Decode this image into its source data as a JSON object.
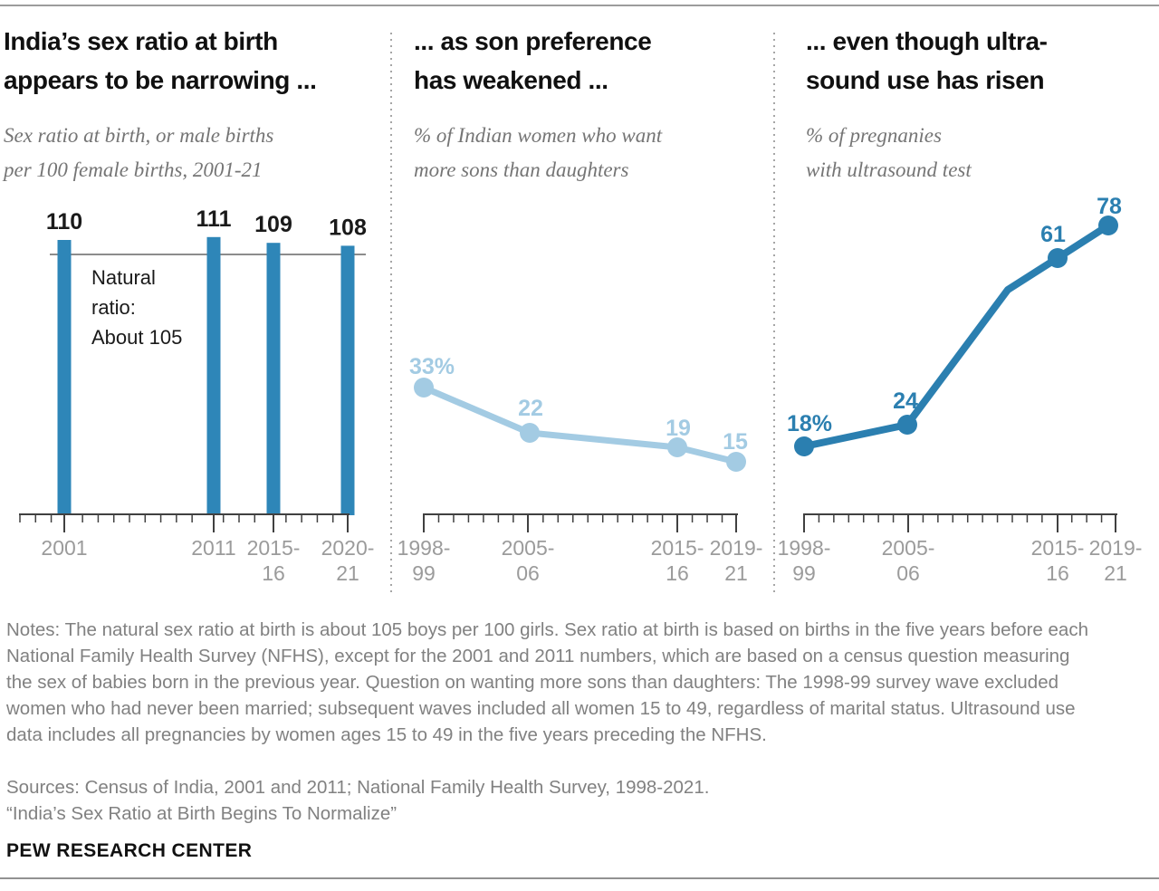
{
  "panels": [
    {
      "title": "India’s sex ratio at birth\nappears to be narrowing ...",
      "subtitle": "Sex ratio at birth, or male births\nper 100 female births, 2001-21"
    },
    {
      "title": "... as son preference\nhas weakened ...",
      "subtitle": "% of Indian women who want\nmore sons than daughters"
    },
    {
      "title": "... even though ultra-\nsound use has risen",
      "subtitle": "% of pregnanies\nwith ultrasound test"
    }
  ],
  "chart_data": [
    {
      "type": "bar",
      "categories": [
        "2001",
        "2011",
        "2015-\n16",
        "2020-\n21"
      ],
      "values": [
        110,
        111,
        109,
        108
      ],
      "value_labels": [
        "110",
        "111",
        "109",
        "108"
      ],
      "ylabel": "Sex ratio at birth (male births per 100 female births)",
      "reference_line": {
        "value": 105,
        "label": "Natural\nratio:\nAbout 105"
      },
      "x_axis_span": "2000-2021, minor ticks each year",
      "grid": "off"
    },
    {
      "type": "line",
      "categories": [
        "1998-\n99",
        "2005-\n06",
        "2015-\n16",
        "2019-\n21"
      ],
      "values": [
        33,
        22,
        19,
        15
      ],
      "point_labels": [
        "33%",
        "22",
        "19",
        "15"
      ],
      "ylabel": "% of Indian women who want more sons than daughters",
      "grid": "off"
    },
    {
      "type": "line",
      "categories": [
        "1998-\n99",
        "2005-\n06",
        "2015-\n16",
        "2019-\n21"
      ],
      "values": [
        18,
        24,
        61,
        78
      ],
      "point_labels": [
        "18%",
        "24",
        "61",
        "78"
      ],
      "ylabel": "% of pregnancies with ultrasound test",
      "grid": "off"
    }
  ],
  "colors": {
    "bar_blue": "#2e86b8",
    "light_blue": "#a3cbe3",
    "dark_blue": "#2b7fb0",
    "value_label_dark": "#1a1a1a",
    "axis_label_gray": "#9b9b9b",
    "axis_line": "#404040",
    "reference_gray": "#8c8c8c"
  },
  "footer": {
    "notes": "Notes: The natural sex ratio at birth is about 105 boys per 100 girls. Sex ratio at birth is based on births in the five years before each National Family Health Survey (NFHS), except for the 2001 and 2011 numbers, which are based on a census question measuring the sex of babies born in the previous year. Question on wanting more sons than daughters: The 1998-99 survey wave excluded women who had never been married; subsequent waves included all women 15 to 49, regardless of marital status. Ultrasound use data includes all pregnancies by women ages 15 to 49 in the five years preceding the NFHS.",
    "sources": "Sources: Census of India, 2001 and 2011; National Family Health Survey, 1998-2021.",
    "quote": "“India’s Sex Ratio at Birth Begins To Normalize”",
    "brand": "PEW RESEARCH CENTER"
  }
}
